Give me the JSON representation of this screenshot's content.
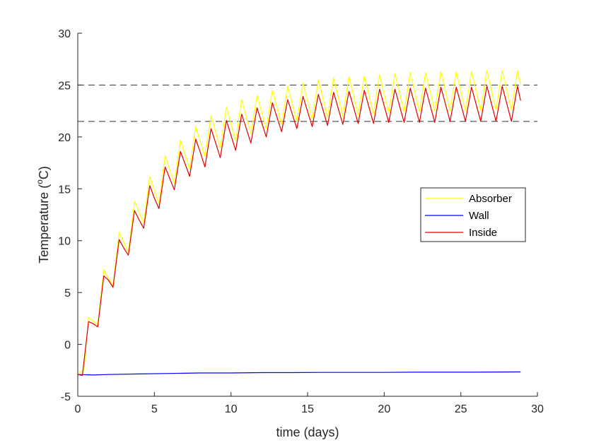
{
  "chart_data": {
    "type": "line",
    "xlabel": "time (days)",
    "ylabel_parts": {
      "pre": "Temperature (",
      "sup": "o",
      "post": "C)"
    },
    "xlim": [
      0,
      30
    ],
    "ylim": [
      -5,
      30
    ],
    "x_ticks": [
      0,
      5,
      10,
      15,
      20,
      25,
      30
    ],
    "y_ticks": [
      -5,
      0,
      5,
      10,
      15,
      20,
      25,
      30
    ],
    "grid": false,
    "legend_position": "right",
    "reference_lines": [
      {
        "y": 25,
        "style": "dashed",
        "color": "#333333"
      },
      {
        "y": 21.5,
        "style": "dashed",
        "color": "#333333"
      }
    ],
    "series": [
      {
        "name": "Absorber",
        "color": "#ffff00",
        "x": [
          0,
          0.4,
          0.7,
          1.3,
          1.7,
          2.3,
          2.7,
          3.3,
          3.7,
          4.3,
          4.7,
          5.3,
          5.7,
          6.3,
          6.7,
          7.3,
          7.7,
          8.3,
          8.7,
          9.3,
          9.7,
          10.3,
          10.7,
          11.3,
          11.7,
          12.3,
          12.7,
          13.3,
          13.7,
          14.3,
          14.7,
          15.3,
          15.7,
          16.3,
          16.7,
          17.3,
          17.7,
          18.3,
          18.7,
          19.3,
          19.7,
          20.3,
          20.7,
          21.3,
          21.7,
          22.3,
          22.7,
          23.3,
          23.7,
          24.3,
          24.7,
          25.3,
          25.7,
          26.3,
          26.7,
          27.3,
          27.7,
          28.3,
          28.7,
          28.9
        ],
        "y": [
          -2.8,
          -2.5,
          2.6,
          1.9,
          7.2,
          5.6,
          10.8,
          8.9,
          13.8,
          11.7,
          16.2,
          13.6,
          18.2,
          15.5,
          19.7,
          16.9,
          21.0,
          18.1,
          22.0,
          18.9,
          22.9,
          19.6,
          23.6,
          20.3,
          24.0,
          20.8,
          24.5,
          21.2,
          24.9,
          21.5,
          25.2,
          21.7,
          25.5,
          21.9,
          25.7,
          22.0,
          25.8,
          22.1,
          25.9,
          22.2,
          26.0,
          22.3,
          26.1,
          22.4,
          26.2,
          22.4,
          26.2,
          22.5,
          26.3,
          22.5,
          26.3,
          22.5,
          26.3,
          22.5,
          26.4,
          22.6,
          26.4,
          22.6,
          26.4,
          25.0
        ]
      },
      {
        "name": "Wall",
        "color": "#0000ff",
        "x": [
          0,
          1,
          2,
          4,
          6,
          8,
          10,
          12,
          14,
          16,
          18,
          20,
          22,
          24,
          26,
          28,
          28.9
        ],
        "y": [
          -2.9,
          -2.95,
          -2.9,
          -2.85,
          -2.8,
          -2.75,
          -2.75,
          -2.72,
          -2.72,
          -2.7,
          -2.7,
          -2.7,
          -2.68,
          -2.68,
          -2.68,
          -2.66,
          -2.65
        ]
      },
      {
        "name": "Inside",
        "color": "#e00000",
        "x": [
          0,
          0.3,
          0.7,
          1.0,
          1.3,
          1.7,
          2.0,
          2.3,
          2.7,
          3.0,
          3.3,
          3.7,
          4.0,
          4.3,
          4.7,
          5.0,
          5.3,
          5.7,
          6.0,
          6.3,
          6.7,
          7.0,
          7.3,
          7.7,
          8.0,
          8.3,
          8.7,
          9.0,
          9.3,
          9.7,
          10.3,
          10.7,
          11.3,
          11.7,
          12.3,
          12.7,
          13.3,
          13.7,
          14.3,
          14.7,
          15.3,
          15.7,
          16.3,
          16.7,
          17.3,
          17.7,
          18.3,
          18.7,
          19.3,
          19.7,
          20.3,
          20.7,
          21.3,
          21.7,
          22.3,
          22.7,
          23.3,
          23.7,
          24.3,
          24.7,
          25.3,
          25.7,
          26.3,
          26.7,
          27.3,
          27.7,
          28.3,
          28.7,
          28.9
        ],
        "y": [
          -2.9,
          -3.0,
          2.2,
          2.0,
          1.7,
          6.6,
          6.2,
          5.5,
          10.1,
          9.3,
          8.6,
          12.9,
          12.0,
          11.2,
          15.3,
          14.1,
          13.1,
          17.1,
          16.0,
          14.9,
          18.6,
          17.4,
          16.2,
          19.8,
          18.5,
          17.1,
          20.8,
          19.4,
          18.0,
          21.6,
          18.7,
          22.2,
          19.4,
          22.8,
          20.0,
          23.3,
          20.5,
          23.6,
          20.8,
          23.9,
          21.0,
          24.1,
          21.1,
          24.3,
          21.2,
          24.4,
          21.3,
          24.5,
          21.3,
          24.6,
          21.4,
          24.6,
          21.4,
          24.7,
          21.4,
          24.7,
          21.4,
          24.8,
          21.5,
          24.8,
          21.5,
          24.8,
          21.5,
          24.9,
          21.5,
          24.9,
          21.5,
          24.9,
          23.5
        ]
      }
    ]
  }
}
